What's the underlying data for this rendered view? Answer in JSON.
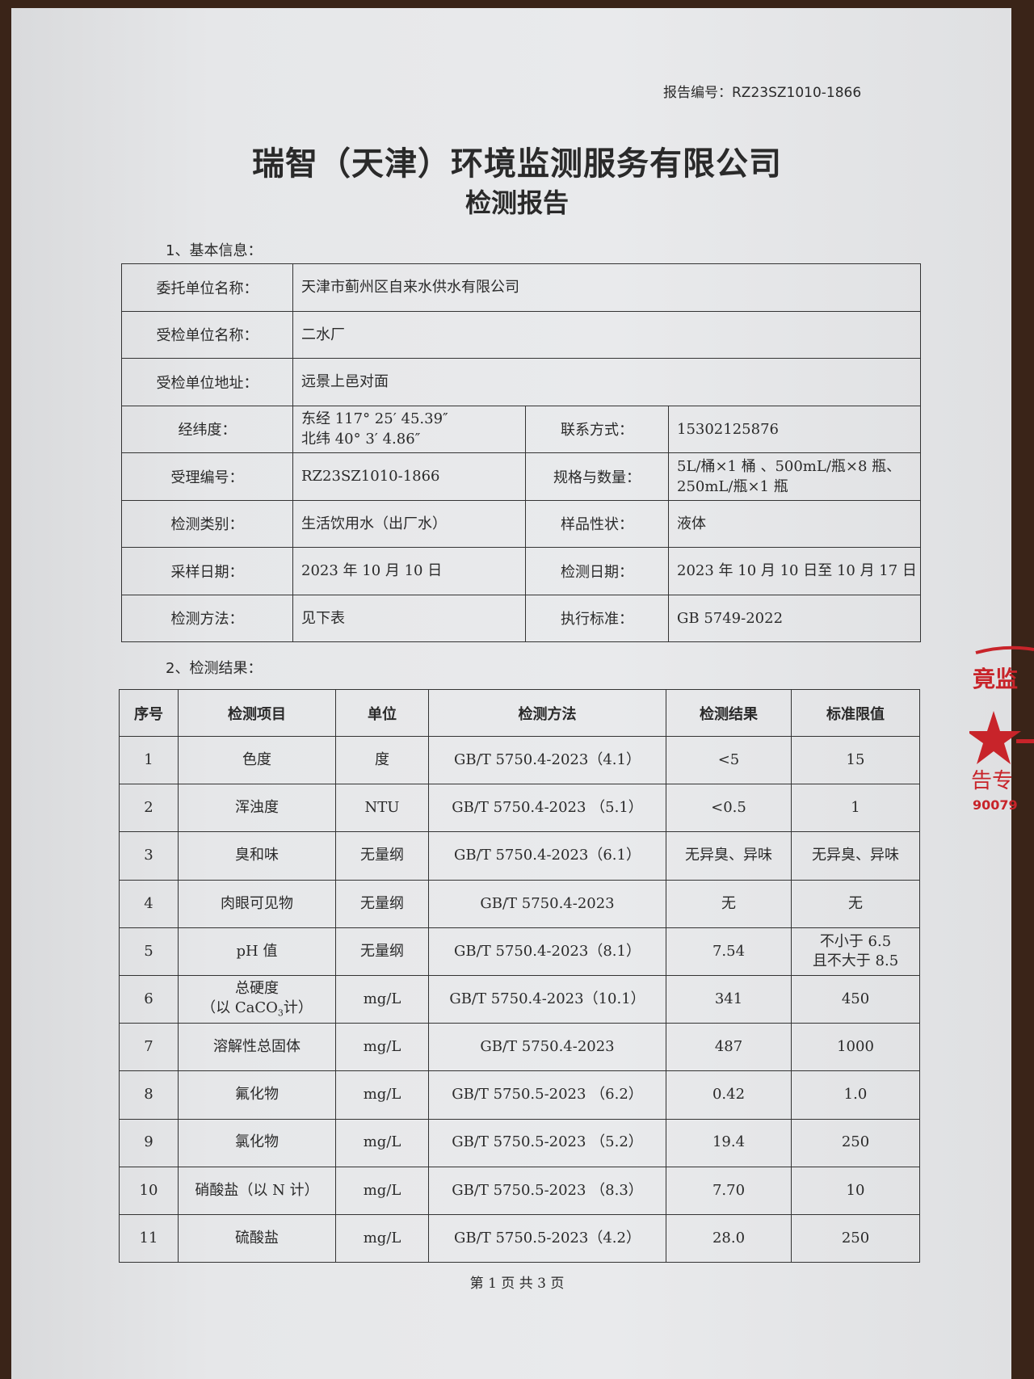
{
  "report_number": "报告编号：RZ23SZ1010-1866",
  "title": "瑞智（天津）环境监测服务有限公司",
  "subtitle": "检测报告",
  "section1": "1、基本信息：",
  "info": {
    "client_label": "委托单位名称：",
    "client": "天津市蓟州区自来水供水有限公司",
    "inspected_label": "受检单位名称：",
    "inspected": "二水厂",
    "address_label": "受检单位地址：",
    "address": "远景上邑对面",
    "coords_label": "经纬度：",
    "lon": "东经 117° 25′ 45.39″",
    "lat": "北纬 40° 3′ 4.86″",
    "contact_label": "联系方式：",
    "contact": "15302125876",
    "accept_label": "受理编号：",
    "accept": "RZ23SZ1010-1866",
    "spec_label": "规格与数量：",
    "spec1": "5L/桶×1 桶 、500mL/瓶×8 瓶、",
    "spec2": "250mL/瓶×1 瓶",
    "type_label": "检测类别：",
    "type": "生活饮用水（出厂水）",
    "state_label": "样品性状：",
    "state": "液体",
    "sample_date_label": "采样日期：",
    "sample_date": "2023 年 10 月 10 日",
    "test_date_label": "检测日期：",
    "test_date": "2023 年 10 月 10 日至 10 月 17 日",
    "method_label": "检测方法：",
    "method": "见下表",
    "standard_label": "执行标准：",
    "standard": "GB 5749-2022"
  },
  "section2": "2、检测结果：",
  "results": {
    "headers": [
      "序号",
      "检测项目",
      "单位",
      "检测方法",
      "检测结果",
      "标准限值"
    ],
    "rows": [
      [
        "1",
        "色度",
        "度",
        "GB/T 5750.4-2023（4.1）",
        "<5",
        "15"
      ],
      [
        "2",
        "浑浊度",
        "NTU",
        "GB/T 5750.4-2023 （5.1）",
        "<0.5",
        "1"
      ],
      [
        "3",
        "臭和味",
        "无量纲",
        "GB/T 5750.4-2023（6.1）",
        "无异臭、异味",
        "无异臭、异味"
      ],
      [
        "4",
        "肉眼可见物",
        "无量纲",
        "GB/T 5750.4-2023",
        "无",
        "无"
      ],
      [
        "5",
        "pH 值",
        "无量纲",
        "GB/T 5750.4-2023（8.1）",
        "7.54",
        "不小于 6.5",
        "且不大于 8.5"
      ],
      [
        "6",
        "总硬度",
        "mg/L",
        "GB/T 5750.4-2023（10.1）",
        "341",
        "450",
        "（以 CaCO",
        "3",
        "计）"
      ],
      [
        "7",
        "溶解性总固体",
        "mg/L",
        "GB/T 5750.4-2023",
        "487",
        "1000"
      ],
      [
        "8",
        "氟化物",
        "mg/L",
        "GB/T 5750.5-2023 （6.2）",
        "0.42",
        "1.0"
      ],
      [
        "9",
        "氯化物",
        "mg/L",
        "GB/T 5750.5-2023 （5.2）",
        "19.4",
        "250"
      ],
      [
        "10",
        "硝酸盐（以 N 计）",
        "mg/L",
        "GB/T 5750.5-2023 （8.3）",
        "7.70",
        "10"
      ],
      [
        "11",
        "硫酸盐",
        "mg/L",
        "GB/T 5750.5-2023（4.2）",
        "28.0",
        "250"
      ]
    ]
  },
  "footer": "第 1 页 共 3 页",
  "stamp": {
    "text_top": "境监测",
    "text_bottom": "报告专用",
    "number": "90079",
    "color": "#c8242a"
  }
}
